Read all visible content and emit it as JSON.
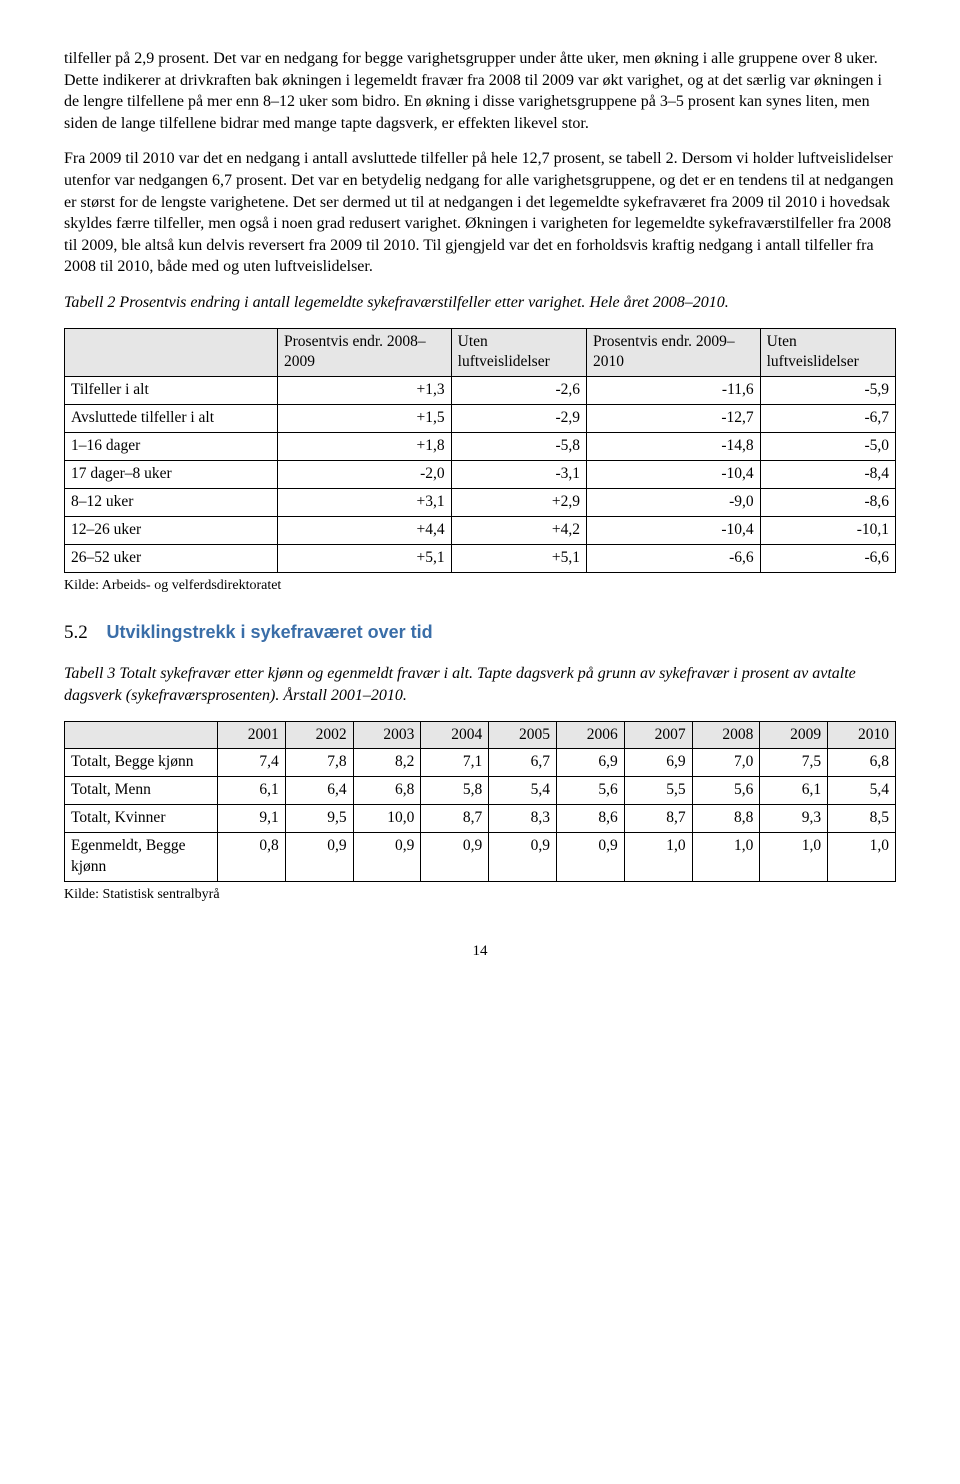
{
  "para1": "tilfeller på 2,9 prosent. Det var en nedgang for begge varighetsgrupper under åtte uker, men økning i alle gruppene over 8 uker. Dette indikerer at drivkraften bak økningen i legemeldt fravær fra 2008 til 2009 var økt varighet, og at det særlig var økningen i de lengre tilfellene på mer enn 8–12 uker som bidro. En økning i disse varighetsgruppene på 3–5 prosent kan synes liten, men siden de lange tilfellene bidrar med mange tapte dagsverk, er effekten likevel stor.",
  "para2": "Fra 2009 til 2010 var det en nedgang i antall avsluttede tilfeller på hele 12,7 prosent, se tabell 2. Dersom vi holder luftveislidelser utenfor var nedgangen 6,7 prosent. Det var en betydelig nedgang for alle varighetsgruppene, og det er en tendens til at nedgangen er størst for de lengste varighetene. Det ser dermed ut til at nedgangen i det legemeldte sykefraværet fra 2009 til 2010 i hovedsak skyldes færre tilfeller, men også i noen grad redusert varighet. Økningen i varigheten for legemeldte sykefraværstilfeller fra 2008 til 2009, ble altså kun delvis reversert fra 2009 til 2010. Til gjengjeld var det en forholdsvis kraftig nedgang i antall tilfeller fra 2008 til 2010, både med og uten luftveislidelser.",
  "table2": {
    "caption": "Tabell 2 Prosentvis endring i antall legemeldte sykefraværstilfeller etter varighet. Hele året 2008–2010.",
    "headers": [
      "",
      "Prosentvis endr. 2008–2009",
      "Uten luftveislidelser",
      "Prosentvis endr. 2009–2010",
      "Uten luftveislidelser"
    ],
    "rows": [
      [
        "Tilfeller i alt",
        "+1,3",
        "-2,6",
        "-11,6",
        "-5,9"
      ],
      [
        "Avsluttede tilfeller i alt",
        "+1,5",
        "-2,9",
        "-12,7",
        "-6,7"
      ],
      [
        "1–16 dager",
        "+1,8",
        "-5,8",
        "-14,8",
        "-5,0"
      ],
      [
        "17 dager–8 uker",
        "-2,0",
        "-3,1",
        "-10,4",
        "-8,4"
      ],
      [
        "8–12 uker",
        "+3,1",
        "+2,9",
        "-9,0",
        "-8,6"
      ],
      [
        "12–26 uker",
        "+4,4",
        "+4,2",
        "-10,4",
        "-10,1"
      ],
      [
        "26–52 uker",
        "+5,1",
        "+5,1",
        "-6,6",
        "-6,6"
      ]
    ],
    "source": "Kilde: Arbeids- og velferdsdirektoratet"
  },
  "section": {
    "number": "5.2",
    "title": "Utviklingstrekk i sykefraværet over tid"
  },
  "table3": {
    "caption": "Tabell 3 Totalt sykefravær etter kjønn og egenmeldt fravær i alt. Tapte dagsverk på grunn av sykefravær i prosent av avtalte dagsverk (sykefraværsprosenten). Årstall 2001–2010.",
    "headers": [
      "",
      "2001",
      "2002",
      "2003",
      "2004",
      "2005",
      "2006",
      "2007",
      "2008",
      "2009",
      "2010"
    ],
    "rows": [
      [
        "Totalt, Begge kjønn",
        "7,4",
        "7,8",
        "8,2",
        "7,1",
        "6,7",
        "6,9",
        "6,9",
        "7,0",
        "7,5",
        "6,8"
      ],
      [
        "Totalt, Menn",
        "6,1",
        "6,4",
        "6,8",
        "5,8",
        "5,4",
        "5,6",
        "5,5",
        "5,6",
        "6,1",
        "5,4"
      ],
      [
        "Totalt, Kvinner",
        "9,1",
        "9,5",
        "10,0",
        "8,7",
        "8,3",
        "8,6",
        "8,7",
        "8,8",
        "9,3",
        "8,5"
      ],
      [
        "Egenmeldt, Begge kjønn",
        "0,8",
        "0,9",
        "0,9",
        "0,9",
        "0,9",
        "0,9",
        "1,0",
        "1,0",
        "1,0",
        "1,0"
      ]
    ],
    "source": "Kilde: Statistisk sentralbyrå"
  },
  "pageNumber": "14"
}
